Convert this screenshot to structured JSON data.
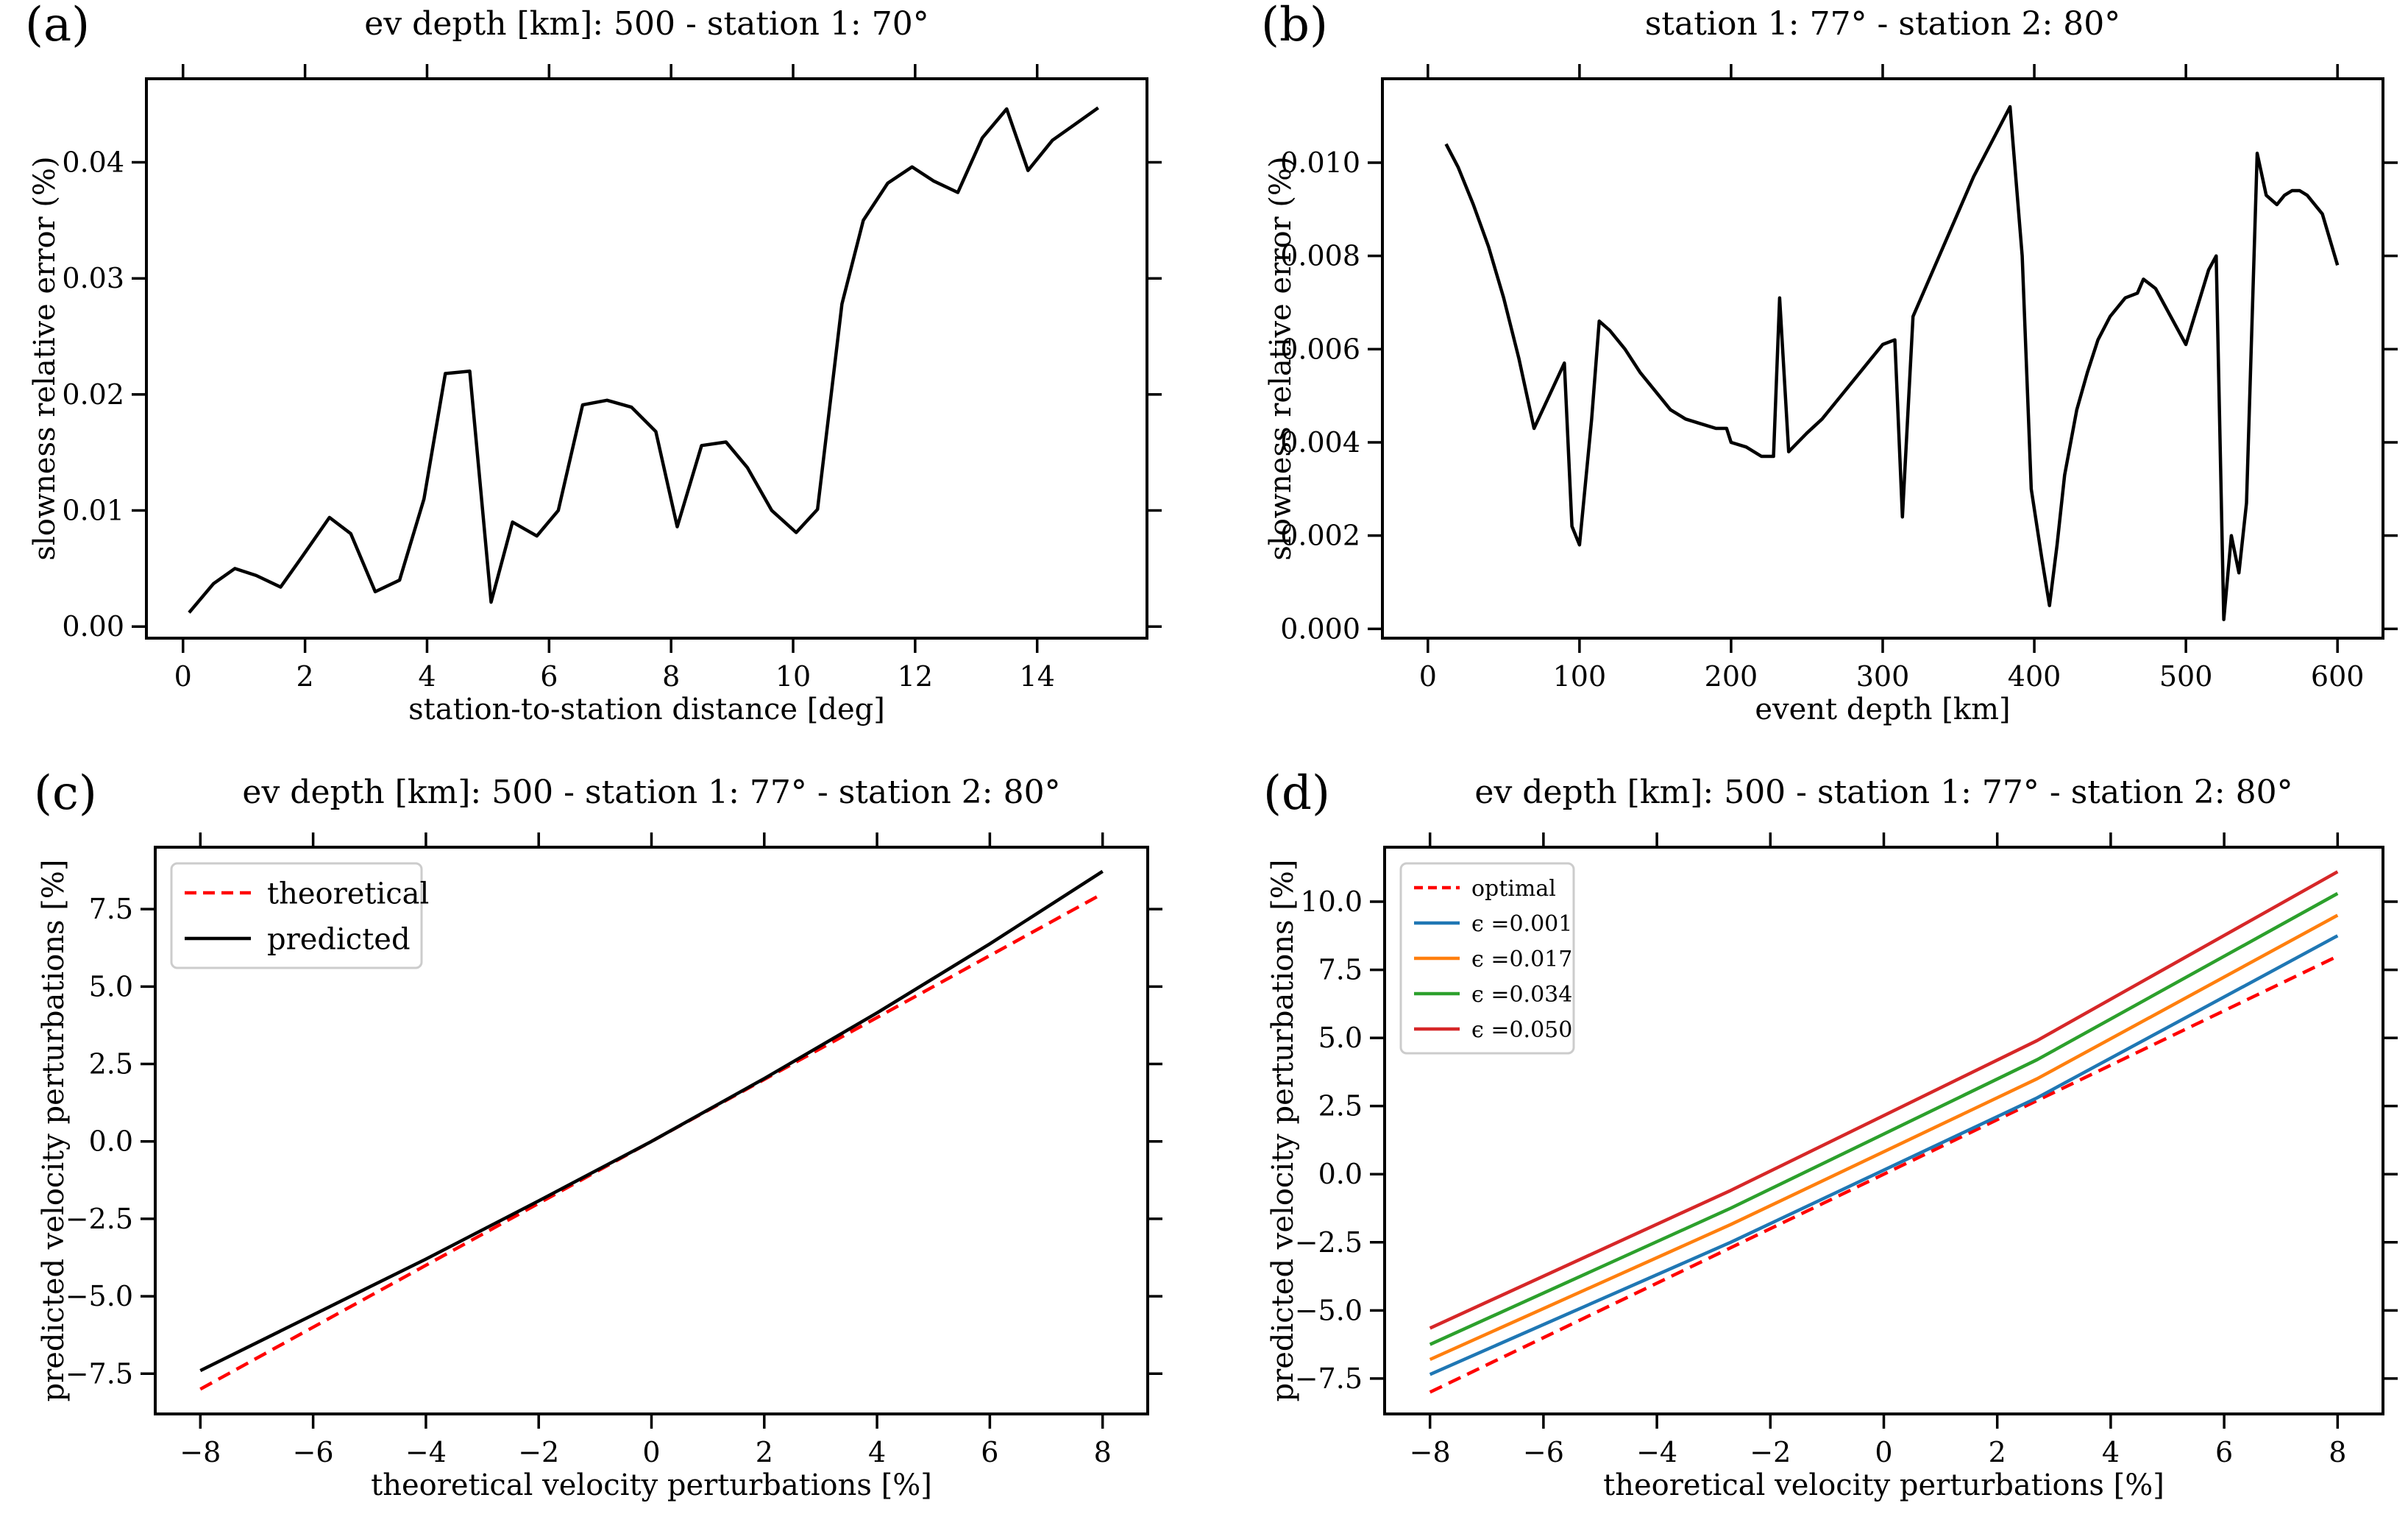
{
  "figure": {
    "colors": {
      "black": "#000000",
      "red": "#d62728",
      "blue": "#1f77b4",
      "orange": "#ff7f0e",
      "green": "#2ca02c",
      "dark_red": "#d62728"
    }
  },
  "chart_data": [
    {
      "panel_label": "(a)",
      "type": "line",
      "title": "ev depth [km]: 500 - station 1: 70°",
      "xlabel": "station-to-station distance [deg]",
      "ylabel": "slowness relative error (%)",
      "xlim": [
        -0.6,
        15.8
      ],
      "ylim": [
        -0.001,
        0.0472
      ],
      "xticks": [
        0,
        2,
        4,
        6,
        8,
        10,
        12,
        14
      ],
      "xtick_labels": [
        "0",
        "2",
        "4",
        "6",
        "8",
        "10",
        "12",
        "14"
      ],
      "yticks": [
        0.0,
        0.01,
        0.02,
        0.03,
        0.04
      ],
      "ytick_labels": [
        "0.00",
        "0.01",
        "0.02",
        "0.03",
        "0.04"
      ],
      "series": [
        {
          "name": "",
          "color": "#000000",
          "dash": "",
          "x": [
            0.1,
            0.5,
            0.85,
            1.2,
            1.6,
            1.95,
            2.4,
            2.75,
            3.15,
            3.55,
            3.95,
            4.3,
            4.7,
            5.05,
            5.4,
            5.8,
            6.15,
            6.55,
            6.95,
            7.35,
            7.75,
            8.1,
            8.5,
            8.9,
            9.25,
            9.65,
            10.05,
            10.4,
            10.8,
            11.15,
            11.55,
            11.95,
            12.3,
            12.7,
            13.1,
            13.5,
            13.85,
            14.25,
            14.6,
            15.0
          ],
          "y": [
            0.0012,
            0.0037,
            0.005,
            0.0044,
            0.0034,
            0.006,
            0.0094,
            0.008,
            0.003,
            0.004,
            0.011,
            0.0218,
            0.022,
            0.0021,
            0.009,
            0.0078,
            0.01,
            0.0191,
            0.0195,
            0.0189,
            0.0168,
            0.0086,
            0.0156,
            0.0159,
            0.0137,
            0.01,
            0.0081,
            0.0101,
            0.0278,
            0.035,
            0.0382,
            0.0396,
            0.0384,
            0.0374,
            0.0421,
            0.0446,
            0.0393,
            0.0419,
            0.0432,
            0.0447
          ]
        }
      ]
    },
    {
      "panel_label": "(b)",
      "type": "line",
      "title": "station 1: 77° - station 2: 80°",
      "xlabel": "event depth [km]",
      "ylabel": "slowness relative error (%)",
      "xlim": [
        -30,
        630
      ],
      "ylim": [
        -0.0002,
        0.0118
      ],
      "xticks": [
        0,
        100,
        200,
        300,
        400,
        500,
        600
      ],
      "xtick_labels": [
        "0",
        "100",
        "200",
        "300",
        "400",
        "500",
        "600"
      ],
      "yticks": [
        0.0,
        0.002,
        0.004,
        0.006,
        0.008,
        0.01
      ],
      "ytick_labels": [
        "0.000",
        "0.002",
        "0.004",
        "0.006",
        "0.008",
        "0.010"
      ],
      "series": [
        {
          "name": "",
          "color": "#000000",
          "dash": "",
          "x": [
            12,
            20,
            30,
            40,
            50,
            60,
            70,
            80,
            90,
            95,
            100,
            108,
            113,
            120,
            130,
            140,
            150,
            160,
            170,
            180,
            190,
            197,
            200,
            210,
            220,
            228,
            232,
            238,
            250,
            260,
            270,
            280,
            290,
            300,
            308,
            313,
            320,
            340,
            360,
            384,
            392,
            398,
            405,
            410,
            415,
            420,
            428,
            435,
            442,
            450,
            460,
            468,
            472,
            480,
            490,
            500,
            515,
            520,
            525,
            530,
            535,
            540,
            547,
            553,
            560,
            565,
            570,
            575,
            580,
            590,
            600
          ],
          "y": [
            0.0104,
            0.0099,
            0.0091,
            0.0082,
            0.0071,
            0.0058,
            0.0043,
            0.005,
            0.0057,
            0.0022,
            0.0018,
            0.0045,
            0.0066,
            0.0064,
            0.006,
            0.0055,
            0.0051,
            0.0047,
            0.0045,
            0.0044,
            0.0043,
            0.0043,
            0.004,
            0.0039,
            0.0037,
            0.0037,
            0.0071,
            0.0038,
            0.0042,
            0.0045,
            0.0049,
            0.0053,
            0.0057,
            0.0061,
            0.0062,
            0.0024,
            0.0067,
            0.0082,
            0.0097,
            0.0112,
            0.008,
            0.003,
            0.0015,
            0.0005,
            0.0018,
            0.0033,
            0.0047,
            0.0055,
            0.0062,
            0.0067,
            0.0071,
            0.0072,
            0.0075,
            0.0073,
            0.0067,
            0.0061,
            0.0077,
            0.008,
            0.0002,
            0.002,
            0.0012,
            0.0027,
            0.0102,
            0.0093,
            0.0091,
            0.0093,
            0.0094,
            0.0094,
            0.0093,
            0.0089,
            0.0078
          ]
        }
      ]
    },
    {
      "panel_label": "(c)",
      "type": "line",
      "title": "ev depth [km]: 500 - station 1: 77° - station 2: 80°",
      "xlabel": "theoretical velocity perturbations [%]",
      "ylabel": "predicted velocity perturbations [%]",
      "xlim": [
        -8.8,
        8.8
      ],
      "ylim": [
        -8.8,
        9.5
      ],
      "xticks": [
        -8,
        -6,
        -4,
        -2,
        0,
        2,
        4,
        6,
        8
      ],
      "xtick_labels": [
        "−8",
        "−6",
        "−4",
        "−2",
        "0",
        "2",
        "4",
        "6",
        "8"
      ],
      "yticks": [
        -7.5,
        -5.0,
        -2.5,
        0.0,
        2.5,
        5.0,
        7.5
      ],
      "ytick_labels": [
        "−7.5",
        "−5.0",
        "−2.5",
        "0.0",
        "2.5",
        "5.0",
        "7.5"
      ],
      "legend": {
        "placement": "top-left",
        "entries": [
          "theoretical",
          "predicted"
        ]
      },
      "series": [
        {
          "name": "theoretical",
          "color": "#ff0000",
          "dash": "18,10",
          "x": [
            -8,
            8
          ],
          "y": [
            -8,
            8
          ]
        },
        {
          "name": "predicted",
          "color": "#000000",
          "dash": "",
          "x": [
            -8,
            -6,
            -4,
            -2,
            0,
            2,
            4,
            6,
            8
          ],
          "y": [
            -7.4,
            -5.6,
            -3.8,
            -1.92,
            0.0,
            2.03,
            4.15,
            6.38,
            8.72
          ]
        }
      ]
    },
    {
      "panel_label": "(d)",
      "type": "line",
      "title": "ev depth [km]: 500 - station 1: 77° - station 2: 80°",
      "xlabel": "theoretical velocity perturbations [%]",
      "ylabel": "predicted velocity perturbations [%]",
      "xlim": [
        -8.8,
        8.8
      ],
      "ylim": [
        -8.8,
        12.0
      ],
      "xticks": [
        -8,
        -6,
        -4,
        -2,
        0,
        2,
        4,
        6,
        8
      ],
      "xtick_labels": [
        "−8",
        "−6",
        "−4",
        "−2",
        "0",
        "2",
        "4",
        "6",
        "8"
      ],
      "yticks": [
        -7.5,
        -5.0,
        -2.5,
        0.0,
        2.5,
        5.0,
        7.5,
        10.0
      ],
      "ytick_labels": [
        "−7.5",
        "−5.0",
        "−2.5",
        "0.0",
        "2.5",
        "5.0",
        "7.5",
        "10.0"
      ],
      "legend": {
        "placement": "top-left",
        "entries": [
          "optimal",
          "ϵ =0.001",
          "ϵ =0.017",
          "ϵ =0.034",
          "ϵ =0.050"
        ]
      },
      "series": [
        {
          "name": "optimal",
          "color": "#ff0000",
          "dash": "18,10",
          "x": [
            -8,
            8
          ],
          "y": [
            -8,
            8
          ]
        },
        {
          "name": "ϵ =0.001",
          "color": "#1f77b4",
          "dash": "",
          "x": [
            -8,
            -2.7,
            2.7,
            8
          ],
          "y": [
            -7.35,
            -2.5,
            2.8,
            8.75
          ]
        },
        {
          "name": "ϵ =0.017",
          "color": "#ff7f0e",
          "dash": "",
          "x": [
            -8,
            -2.7,
            2.7,
            8
          ],
          "y": [
            -6.8,
            -1.85,
            3.5,
            9.5
          ]
        },
        {
          "name": "ϵ =0.034",
          "color": "#2ca02c",
          "dash": "",
          "x": [
            -8,
            -2.7,
            2.7,
            8
          ],
          "y": [
            -6.25,
            -1.25,
            4.2,
            10.3
          ]
        },
        {
          "name": "ϵ =0.050",
          "color": "#d62728",
          "dash": "",
          "x": [
            -8,
            -2.7,
            2.7,
            8
          ],
          "y": [
            -5.65,
            -0.6,
            4.9,
            11.1
          ]
        }
      ]
    }
  ]
}
